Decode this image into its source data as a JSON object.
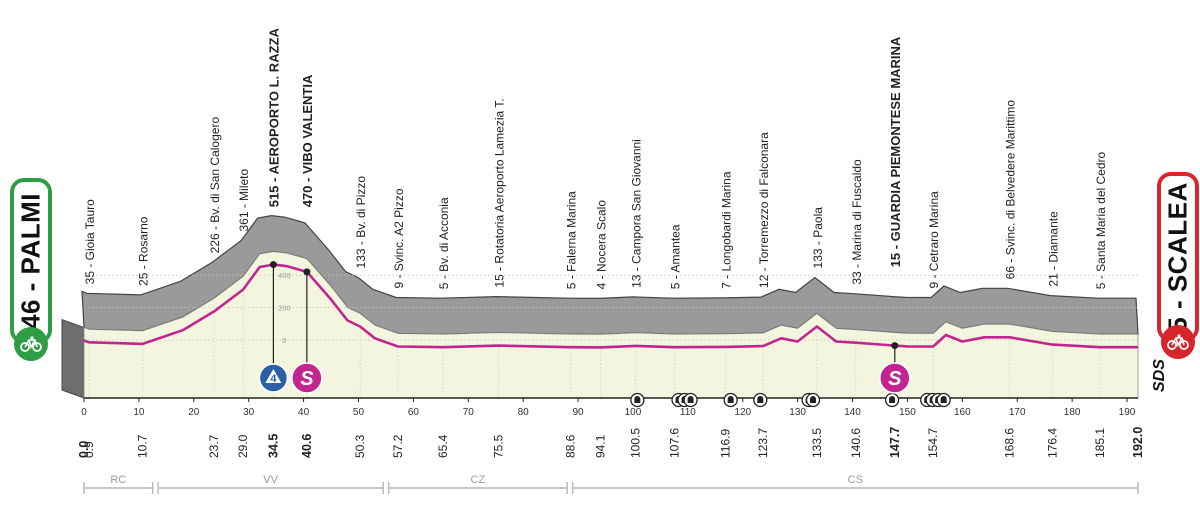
{
  "start": {
    "label": "46 - PALMI",
    "color": "#2e9e44"
  },
  "finish": {
    "label": "5 - SCALEA",
    "color": "#d6262b"
  },
  "colors": {
    "profile_fill": "#f4f5df",
    "profile_shadow": "#9a9a9a",
    "route_line": "#c2258f",
    "sprint_badge": "#c2258f",
    "kom_badge": "#2d5fa3"
  },
  "brand": "SDS",
  "chart_data": {
    "type": "area",
    "x_unit": "km",
    "xlim": [
      0,
      192
    ],
    "x_ticks": [
      0,
      10,
      20,
      30,
      40,
      50,
      60,
      70,
      80,
      90,
      100,
      110,
      120,
      130,
      140,
      150,
      160,
      170,
      180,
      190
    ],
    "y_ticks": [
      0,
      200,
      400
    ],
    "profile": [
      {
        "km": 0,
        "alt": 46
      },
      {
        "km": 0.9,
        "alt": 35
      },
      {
        "km": 10.7,
        "alt": 25
      },
      {
        "km": 18,
        "alt": 110
      },
      {
        "km": 23.7,
        "alt": 226
      },
      {
        "km": 29.0,
        "alt": 361
      },
      {
        "km": 32,
        "alt": 500
      },
      {
        "km": 34.5,
        "alt": 515
      },
      {
        "km": 37,
        "alt": 505
      },
      {
        "km": 40.6,
        "alt": 470
      },
      {
        "km": 45,
        "alt": 300
      },
      {
        "km": 48,
        "alt": 170
      },
      {
        "km": 50.3,
        "alt": 133
      },
      {
        "km": 53,
        "alt": 60
      },
      {
        "km": 57.2,
        "alt": 9
      },
      {
        "km": 65.4,
        "alt": 5
      },
      {
        "km": 75.5,
        "alt": 15
      },
      {
        "km": 88.6,
        "alt": 5
      },
      {
        "km": 94.1,
        "alt": 4
      },
      {
        "km": 100.5,
        "alt": 13
      },
      {
        "km": 107.6,
        "alt": 5
      },
      {
        "km": 116.9,
        "alt": 7
      },
      {
        "km": 123.7,
        "alt": 12
      },
      {
        "km": 127,
        "alt": 60
      },
      {
        "km": 130,
        "alt": 40
      },
      {
        "km": 133.5,
        "alt": 133
      },
      {
        "km": 137,
        "alt": 40
      },
      {
        "km": 140.6,
        "alt": 33
      },
      {
        "km": 147.7,
        "alt": 15
      },
      {
        "km": 150,
        "alt": 10
      },
      {
        "km": 154.7,
        "alt": 9
      },
      {
        "km": 157,
        "alt": 80
      },
      {
        "km": 160,
        "alt": 40
      },
      {
        "km": 164,
        "alt": 66
      },
      {
        "km": 168.6,
        "alt": 66
      },
      {
        "km": 176.4,
        "alt": 21
      },
      {
        "km": 185.1,
        "alt": 5
      },
      {
        "km": 192.0,
        "alt": 5
      }
    ],
    "locations": [
      {
        "label": "35 - Gioia Tauro",
        "km": 0.9,
        "bold": false
      },
      {
        "label": "25 - Rosarno",
        "km": 10.7,
        "bold": false
      },
      {
        "label": "226 - Bv. di San Calogero",
        "km": 23.7,
        "bold": false
      },
      {
        "label": "361 - Mileto",
        "km": 29.0,
        "bold": false
      },
      {
        "label": "515 - AEROPORTO L. RAZZA",
        "km": 34.5,
        "bold": true
      },
      {
        "label": "470 - VIBO VALENTIA",
        "km": 40.6,
        "bold": true
      },
      {
        "label": "133 - Bv. di Pizzo",
        "km": 50.3,
        "bold": false
      },
      {
        "label": "9 - Svinc. A2 Pizzo",
        "km": 57.2,
        "bold": false
      },
      {
        "label": "5 - Bv. di Acconia",
        "km": 65.4,
        "bold": false
      },
      {
        "label": "15 - Rotatoria  Aeroporto Lamezia T.",
        "km": 75.5,
        "bold": false
      },
      {
        "label": "5 - Falerna Marina",
        "km": 88.6,
        "bold": false
      },
      {
        "label": "4 - Nocera Scalo",
        "km": 94.1,
        "bold": false
      },
      {
        "label": "13 - Campora San Giovanni",
        "km": 100.5,
        "bold": false
      },
      {
        "label": "5 - Amantea",
        "km": 107.6,
        "bold": false
      },
      {
        "label": "7 - Longobardi Marina",
        "km": 116.9,
        "bold": false
      },
      {
        "label": "12 - Torremezzo di Falconara",
        "km": 123.7,
        "bold": false
      },
      {
        "label": "133 - Paola",
        "km": 133.5,
        "bold": false
      },
      {
        "label": "33 - Marina di Fuscaldo",
        "km": 140.6,
        "bold": false
      },
      {
        "label": "15 - GUARDIA PIEMONTESE MARINA",
        "km": 147.7,
        "bold": true
      },
      {
        "label": "9 - Cetraro Marina",
        "km": 154.7,
        "bold": false
      },
      {
        "label": "66 - Svinc. di Belvedere Marittimo",
        "km": 168.6,
        "bold": false
      },
      {
        "label": "21 - Diamante",
        "km": 176.4,
        "bold": false
      },
      {
        "label": "5 - Santa Maria del Cedro",
        "km": 185.1,
        "bold": false
      }
    ],
    "distances": [
      {
        "label": "0.0",
        "km": 0,
        "bold": true
      },
      {
        "label": "0.9",
        "km": 0.9,
        "bold": false
      },
      {
        "label": "10.7",
        "km": 10.7,
        "bold": false
      },
      {
        "label": "23.7",
        "km": 23.7,
        "bold": false
      },
      {
        "label": "29.0",
        "km": 29.0,
        "bold": false
      },
      {
        "label": "34.5",
        "km": 34.5,
        "bold": true
      },
      {
        "label": "40.6",
        "km": 40.6,
        "bold": true
      },
      {
        "label": "50.3",
        "km": 50.3,
        "bold": false
      },
      {
        "label": "57.2",
        "km": 57.2,
        "bold": false
      },
      {
        "label": "65.4",
        "km": 65.4,
        "bold": false
      },
      {
        "label": "75.5",
        "km": 75.5,
        "bold": false
      },
      {
        "label": "88.6",
        "km": 88.6,
        "bold": false
      },
      {
        "label": "94.1",
        "km": 94.1,
        "bold": false
      },
      {
        "label": "100.5",
        "km": 100.5,
        "bold": false
      },
      {
        "label": "107.6",
        "km": 107.6,
        "bold": false
      },
      {
        "label": "116.9",
        "km": 116.9,
        "bold": false
      },
      {
        "label": "123.7",
        "km": 123.7,
        "bold": false
      },
      {
        "label": "133.5",
        "km": 133.5,
        "bold": false
      },
      {
        "label": "140.6",
        "km": 140.6,
        "bold": false
      },
      {
        "label": "147.7",
        "km": 147.7,
        "bold": true
      },
      {
        "label": "154.7",
        "km": 154.7,
        "bold": false
      },
      {
        "label": "168.6",
        "km": 168.6,
        "bold": false
      },
      {
        "label": "176.4",
        "km": 176.4,
        "bold": false
      },
      {
        "label": "185.1",
        "km": 185.1,
        "bold": false
      },
      {
        "label": "192.0",
        "km": 192.0,
        "bold": true
      }
    ],
    "markers": [
      {
        "type": "kom",
        "label": "4",
        "km": 34.5,
        "alt": 515
      },
      {
        "type": "sprint",
        "label": "S",
        "km": 40.6,
        "alt": 470
      },
      {
        "type": "sprint",
        "label": "S",
        "km": 147.7,
        "alt": 15
      }
    ],
    "tunnels_km": [
      100.8,
      108.3,
      109.4,
      110.5,
      117.8,
      123.2,
      132.0,
      132.8,
      147.2,
      153.6,
      154.6,
      155.6,
      156.6
    ],
    "provinces": [
      {
        "label": "RC",
        "from": 0,
        "to": 12.5
      },
      {
        "label": "VV",
        "from": 13.5,
        "to": 54.5
      },
      {
        "label": "CZ",
        "from": 55.5,
        "to": 88
      },
      {
        "label": "CS",
        "from": 89,
        "to": 192
      }
    ]
  }
}
